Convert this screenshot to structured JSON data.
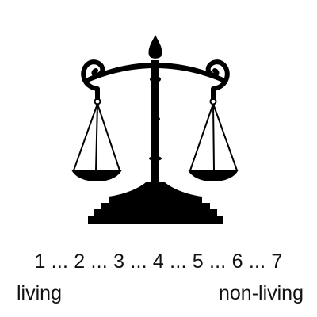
{
  "illustration": {
    "icon": "balance-scale-icon",
    "color": "#000000"
  },
  "scale": {
    "text": "1 ... 2 ... 3 ... 4 ... 5 ... 6 ... 7",
    "left_label": "living",
    "right_label": "non-living"
  }
}
